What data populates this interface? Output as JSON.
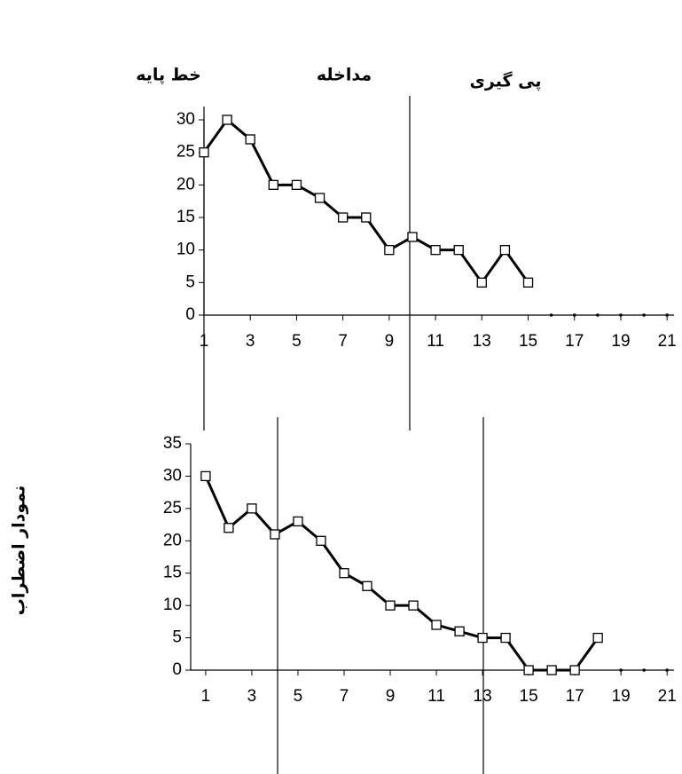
{
  "chart_data": [
    {
      "type": "line",
      "annotations": [
        "خط پایه",
        "مداخله",
        "پی گیری"
      ],
      "x": [
        1,
        2,
        3,
        4,
        5,
        6,
        7,
        8,
        9,
        10,
        11,
        12,
        13,
        14,
        15,
        16,
        17,
        18,
        19,
        20,
        21
      ],
      "series": [
        {
          "color": "#000000",
          "marker": "square",
          "values": [
            25,
            30,
            27,
            20,
            20,
            18,
            15,
            15,
            10,
            12,
            10,
            10,
            5,
            10,
            5,
            null,
            null,
            null,
            null,
            null,
            null
          ]
        },
        {
          "color": "#000000",
          "marker": "dot",
          "values": [
            null,
            null,
            null,
            null,
            null,
            null,
            null,
            null,
            null,
            null,
            null,
            null,
            null,
            null,
            null,
            0,
            0,
            0,
            0,
            0,
            0
          ]
        }
      ],
      "xlim": [
        1,
        21.3
      ],
      "xticks": [
        1,
        3,
        5,
        7,
        9,
        11,
        13,
        15,
        17,
        19,
        21
      ],
      "ylim": [
        0,
        30
      ],
      "yticks": [
        0,
        5,
        10,
        15,
        20,
        25,
        30
      ]
    },
    {
      "type": "line",
      "ylabel": "نمودار اضطراب",
      "x": [
        1,
        2,
        3,
        4,
        5,
        6,
        7,
        8,
        9,
        10,
        11,
        12,
        13,
        14,
        15,
        16,
        17,
        18,
        19,
        20,
        21
      ],
      "series": [
        {
          "color": "#000000",
          "marker": "square",
          "values": [
            30,
            22,
            25,
            21,
            23,
            20,
            15,
            13,
            10,
            10,
            7,
            6,
            5,
            5,
            0,
            0,
            0,
            5,
            null,
            null,
            null
          ]
        },
        {
          "color": "#000000",
          "marker": "dot",
          "values": [
            null,
            null,
            null,
            null,
            null,
            null,
            null,
            null,
            null,
            null,
            null,
            null,
            null,
            null,
            null,
            null,
            null,
            null,
            0,
            0,
            0
          ]
        }
      ],
      "xlim": [
        0.35,
        21.3
      ],
      "xticks": [
        1,
        3,
        5,
        7,
        9,
        11,
        13,
        15,
        17,
        19,
        21
      ],
      "ylim": [
        0,
        35
      ],
      "yticks": [
        0,
        5,
        10,
        15,
        20,
        25,
        30,
        35
      ]
    }
  ]
}
